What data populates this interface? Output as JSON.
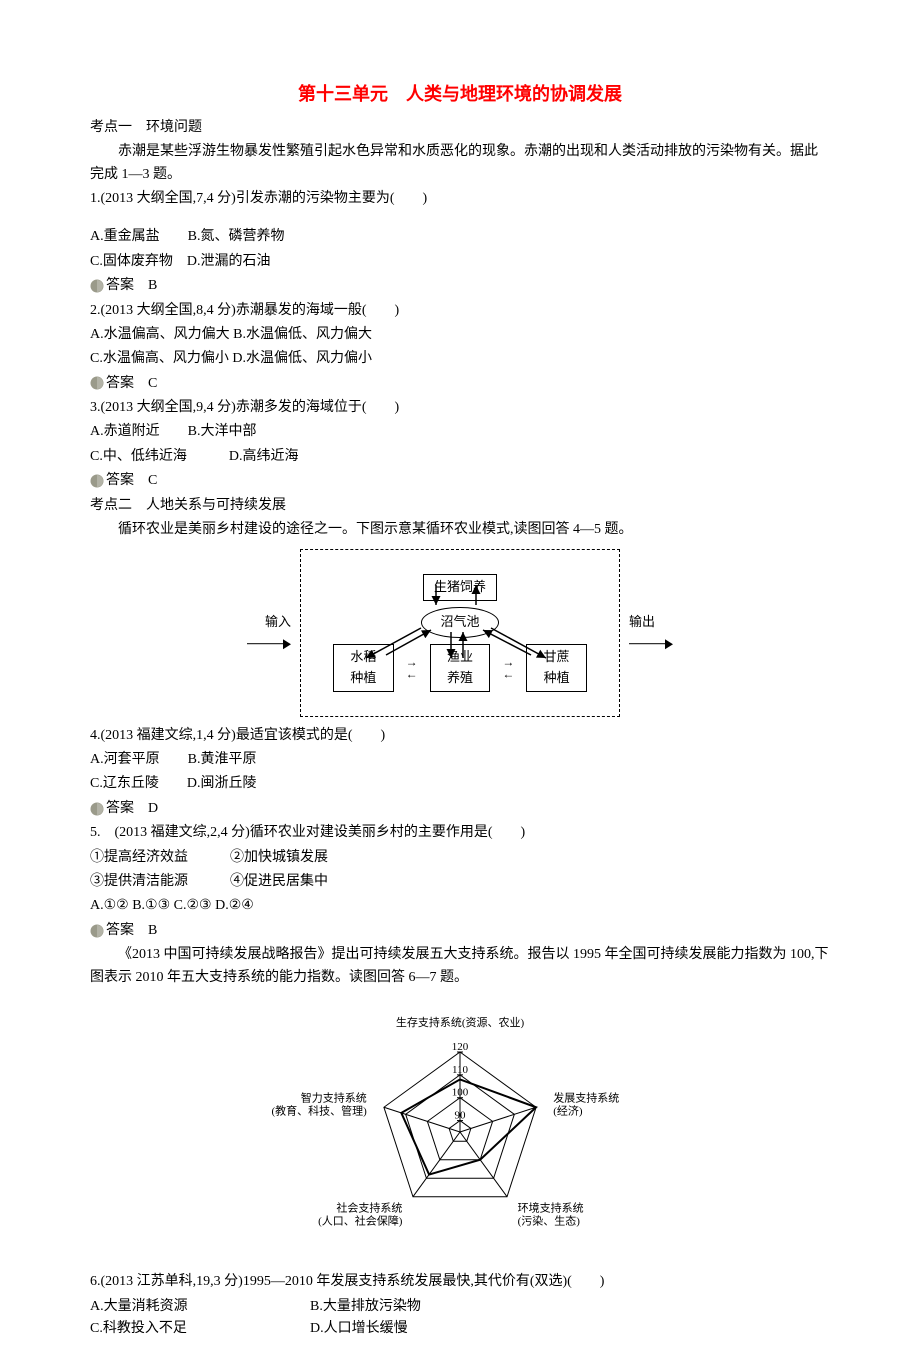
{
  "title": "第十三单元　人类与地理环境的协调发展",
  "topic1_heading": "考点一　环境问题",
  "passage1": "赤潮是某些浮游生物暴发性繁殖引起水色异常和水质恶化的现象。赤潮的出现和人类活动排放的污染物有关。据此完成 1—3 题。",
  "q1_stem": "1.(2013 大纲全国,7,4 分)引发赤潮的污染物主要为(　　)",
  "q1_optA": "A.重金属盐",
  "q1_optB": "B.氮、磷营养物",
  "q1_optC": "C.固体废弃物",
  "q1_optD": "D.泄漏的石油",
  "q1_answer_label": "答案　B",
  "q2_stem": "2.(2013 大纲全国,8,4 分)赤潮暴发的海域一般(　　)",
  "q2_optA": "A.水温偏高、风力偏大",
  "q2_optB": "B.水温偏低、风力偏大",
  "q2_optC": "C.水温偏高、风力偏小",
  "q2_optD": "D.水温偏低、风力偏小",
  "q2_answer_label": "答案　C",
  "q3_stem": "3.(2013 大纲全国,9,4 分)赤潮多发的海域位于(　　)",
  "q3_optA": "A.赤道附近",
  "q3_optB": "B.大洋中部",
  "q3_optC": "C.中、低纬近海",
  "q3_optD": "D.高纬近海",
  "q3_answer_label": "答案　C",
  "topic2_heading": "考点二　人地关系与可持续发展",
  "passage2": "循环农业是美丽乡村建设的途径之一。下图示意某循环农业模式,读图回答 4—5 题。",
  "cycle_diagram": {
    "input_label": "输入",
    "output_label": "输出",
    "top_node": "生猪饲养",
    "center_node": "沼气池",
    "bottom_left": "水稻种植",
    "bottom_mid": "渔业养殖",
    "bottom_right": "甘蔗种植",
    "border_color": "#000000",
    "font_size": 13
  },
  "q4_stem": "4.(2013 福建文综,1,4 分)最适宜该模式的是(　　)",
  "q4_optA": "A.河套平原",
  "q4_optB": "B.黄淮平原",
  "q4_optC": "C.辽东丘陵",
  "q4_optD": "D.闽浙丘陵",
  "q4_answer_label": "答案　D",
  "q5_stem": "5.　(2013 福建文综,2,4 分)循环农业对建设美丽乡村的主要作用是(　　)",
  "q5_s1": "①提高经济效益",
  "q5_s2": "②加快城镇发展",
  "q5_s3": "③提供清洁能源",
  "q5_s4": "④促进民居集中",
  "q5_opts": "A.①② B.①③ C.②③ D.②④",
  "q5_answer_label": "答案　B",
  "passage3": "《2013 中国可持续发展战略报告》提出可持续发展五大支持系统。报告以 1995 年全国可持续发展能力指数为 100,下图表示 2010 年五大支持系统的能力指数。读图回答 6—7 题。",
  "radar_chart": {
    "axes": [
      {
        "label1": "生存支持系统(资源、农业)",
        "angle": 90,
        "value": 108
      },
      {
        "label1": "发展支持系统",
        "label2": "(经济)",
        "angle": 18,
        "value": 120
      },
      {
        "label1": "环境支持系统",
        "label2": "(污染、生态)",
        "angle": -54,
        "value": 100
      },
      {
        "label1": "社会支持系统",
        "label2": "(人口、社会保障)",
        "angle": -126,
        "value": 108
      },
      {
        "label1": "智力支持系统",
        "label2": "(教育、科技、管理)",
        "angle": 162,
        "value": 112
      }
    ],
    "rings": [
      90,
      100,
      110,
      120
    ],
    "ring_labels": [
      "90",
      "100",
      "110",
      "120"
    ],
    "min": 85,
    "max": 120,
    "stroke_color": "#000000",
    "data_fill": "none",
    "data_stroke": "#000000",
    "data_stroke_width": 2,
    "ring_stroke_width": 1,
    "label_fontsize": 11
  },
  "q6_stem": "6.(2013 江苏单科,19,3 分)1995—2010 年发展支持系统发展最快,其代价有(双选)(　　)",
  "q6_optA": "A.大量消耗资源",
  "q6_optB": "B.大量排放污染物",
  "q6_optC": "C.科教投入不足",
  "q6_optD": "D.人口增长缓慢"
}
